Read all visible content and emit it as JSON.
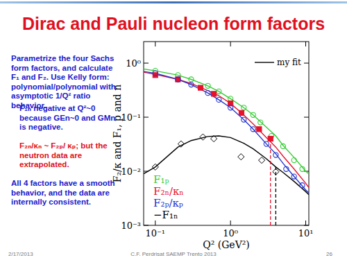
{
  "slide": {
    "title": "Dirac and Pauli nucleon form factors",
    "paragraphs": [
      {
        "text": "Parametrize the four Sachs form factors, and calculate F₁ and F₂. Use Kelly form: polynomial/polynomial with asymptotic 1/Q² ratio behavior.",
        "color": "#1a1acc"
      },
      {
        "text": "F₁ₙ negative at Q²~0 because GEn~0 and GMn is negative.",
        "color": "#1a1acc"
      },
      {
        "text": "F₂ₙ/κₙ ~ F₂ₚ/ κₚ; but the neutron data are extrapolated.",
        "color": "#e01020"
      },
      {
        "text": "All 4 factors have a smooth behavior, and the data are internally consistent.",
        "color": "#1a1acc"
      }
    ],
    "footer": {
      "date": "2/17/2013",
      "event": "C.F. Perdrisat SAEMP Trento 2013",
      "page": "26"
    }
  },
  "chart_data": {
    "type": "scatter",
    "x_label": "Q² (GeV²)",
    "y_label": "F₂/κ and F₁, p and n",
    "log": true,
    "xlim": [
      0.07,
      11
    ],
    "ylim": [
      0.001,
      2.5
    ],
    "xticks": [
      {
        "value": 0.1,
        "label": "10⁻¹"
      },
      {
        "value": 1,
        "label": "10⁰"
      },
      {
        "value": 10,
        "label": "10¹"
      }
    ],
    "yticks": [
      {
        "value": 0.001,
        "label": "10⁻³"
      },
      {
        "value": 0.01,
        "label": "10⁻²"
      },
      {
        "value": 0.1,
        "label": "10⁻¹"
      },
      {
        "value": 1,
        "label": "10⁰"
      }
    ],
    "legend": "lower left",
    "fit_name": "my fit",
    "fit_x": [
      0.07,
      0.1,
      0.2,
      0.3,
      0.5,
      0.7,
      1,
      1.5,
      2,
      3,
      4,
      5,
      7,
      10,
      11
    ],
    "series": [
      {
        "name": "F₁ₚ",
        "color": "#33cc33",
        "marker": "circle",
        "x": [
          0.1,
          0.2,
          0.3,
          0.5,
          0.7,
          1.0,
          1.5,
          2,
          2.5,
          3.5,
          5,
          7,
          9
        ],
        "values": [
          0.72,
          0.6,
          0.5,
          0.38,
          0.3,
          0.22,
          0.15,
          0.11,
          0.08,
          0.045,
          0.029,
          0.016,
          0.011
        ],
        "fit_values": [
          0.78,
          0.72,
          0.6,
          0.5,
          0.38,
          0.3,
          0.22,
          0.15,
          0.11,
          0.065,
          0.045,
          0.03,
          0.018,
          0.01,
          0.009
        ]
      },
      {
        "name": "F₂ₙ/κₙ",
        "color": "#e8102a",
        "marker": "square",
        "x": [
          0.1,
          0.2,
          0.4,
          0.6,
          1.0,
          1.4,
          2.4,
          3.4
        ],
        "values": [
          0.6,
          0.5,
          0.35,
          0.27,
          0.18,
          0.12,
          0.06,
          0.04
        ],
        "fit_values": [
          0.68,
          0.62,
          0.5,
          0.42,
          0.31,
          0.25,
          0.18,
          0.11,
          0.075,
          0.042,
          0.028,
          0.019,
          0.011,
          0.006,
          0.005
        ]
      },
      {
        "name": "F₂ₚ/κₚ",
        "color": "#2233cc",
        "marker": "circle",
        "x": [
          0.1,
          0.2,
          0.3,
          0.5,
          0.7,
          1,
          1.5,
          2,
          3,
          4,
          5.5,
          7,
          9
        ],
        "values": [
          0.65,
          0.5,
          0.4,
          0.28,
          0.21,
          0.15,
          0.09,
          0.06,
          0.032,
          0.02,
          0.011,
          0.008,
          0.0055
        ],
        "fit_values": [
          0.7,
          0.65,
          0.5,
          0.4,
          0.28,
          0.21,
          0.15,
          0.09,
          0.06,
          0.032,
          0.021,
          0.014,
          0.008,
          0.0045,
          0.004
        ]
      },
      {
        "name": "−F₁ₙ",
        "color": "#000000",
        "marker": "diamond",
        "x": [
          0.1,
          0.22,
          0.43,
          0.6,
          1.38,
          2.6,
          4.0
        ],
        "values": [
          0.012,
          0.032,
          0.043,
          0.04,
          0.0185,
          0.016,
          0.0098
        ],
        "fit_values": [
          0.009,
          0.012,
          0.028,
          0.037,
          0.044,
          0.045,
          0.042,
          0.033,
          0.026,
          0.017,
          0.012,
          0.0095,
          0.0065,
          0.0042,
          0.0037
        ]
      }
    ],
    "reference_lines": [
      {
        "x": 3.4,
        "y": 0.042,
        "color": "#e8102a",
        "line_style": "dashed"
      },
      {
        "x": 4.0,
        "y": 0.012,
        "color": "#000000",
        "line_style": "dashed"
      }
    ]
  }
}
